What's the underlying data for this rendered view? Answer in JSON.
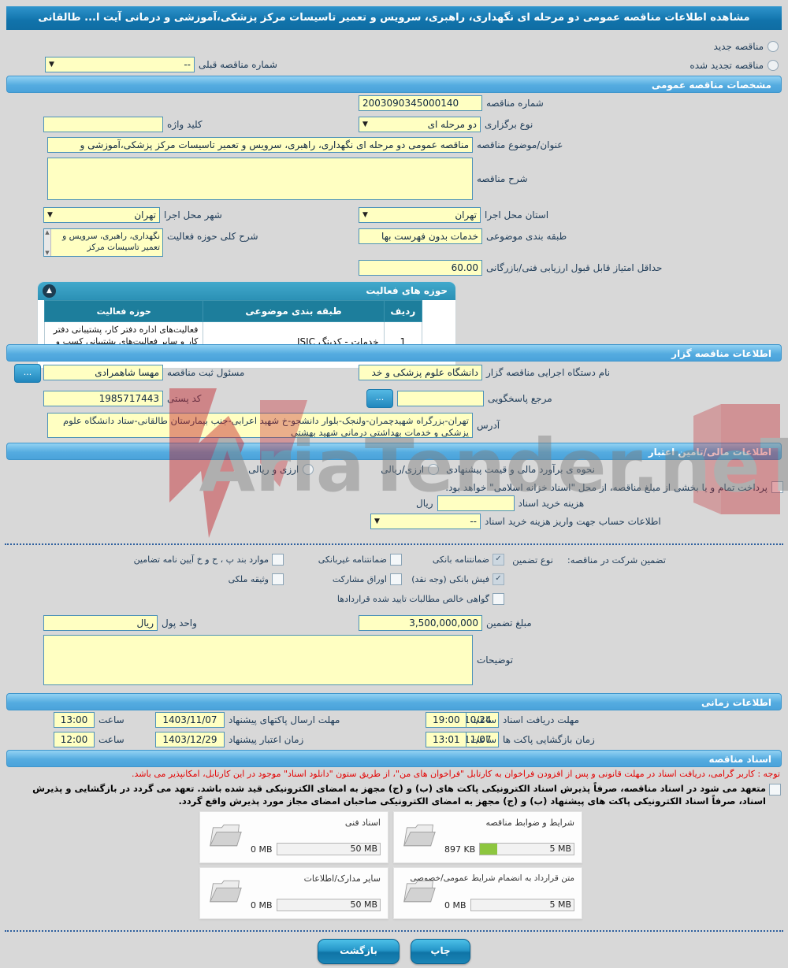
{
  "page": {
    "title": "مشاهده اطلاعات مناقصه عمومی دو مرحله ای نگهداری، راهبری، سرویس و تعمیر تاسیسات مرکز پزشکی،آموزشی و درمانی آیت ا... طالقانی"
  },
  "top": {
    "radio_new": "مناقصه جدید",
    "radio_renewed": "مناقصه تجدید شده",
    "prev_number_label": "شماره مناقصه قبلی",
    "prev_number_value": "--"
  },
  "sections": {
    "general": "مشخصات مناقصه عمومی",
    "activity": "حوزه های فعالیت",
    "agency": "اطلاعات مناقصه گزار",
    "financial": "اطلاعات مالی/تامین اعتبار",
    "timing": "اطلاعات زمانی",
    "documents": "اسناد مناقصه"
  },
  "general": {
    "number_label": "شماره مناقصه",
    "number_value": "2003090345000140",
    "type_label": "نوع برگزاری",
    "type_value": "دو مرحله ای",
    "keyword_label": "کلید واژه",
    "keyword_value": "",
    "subject_label": "عنوان/موضوع مناقصه",
    "subject_value": "مناقصه عمومی دو مرحله ای نگهداری، راهبری، سرویس و تعمیر تاسیسات مرکز پزشکی،آموزشی و",
    "desc_label": "شرح مناقصه",
    "province_label": "استان محل اجرا",
    "province_value": "تهران",
    "city_label": "شهر محل اجرا",
    "city_value": "تهران",
    "category_label": "طبقه بندی موضوعی",
    "category_value": "خدمات بدون فهرست بها",
    "activity_desc_label": "شرح کلی حوزه فعالیت",
    "activity_desc_value": "نگهداری، راهبری، سرویس و تعمیر تاسیسات مرکز",
    "min_score_label": "حداقل امتیاز قابل قبول ارزیابی فنی/بازرگانی",
    "min_score_value": "60.00"
  },
  "activity_table": {
    "headers": [
      "ردیف",
      "طبقه بندی موضوعی",
      "حوزه فعالیت"
    ],
    "rows": [
      {
        "row": "1",
        "category": "خدمات - کدینگ ISIC",
        "field": "فعالیت‌های  اداره دفتر کار، پشتیبانی دفتر کار و سایر فعالیت‌های پشتیبانی کسب و کار"
      }
    ]
  },
  "agency": {
    "org_label": "نام دستگاه اجرایی مناقصه گزار",
    "org_value": "دانشگاه علوم پزشکی و خد",
    "registrar_label": "مسئول ثبت مناقصه",
    "registrar_value": "مهسا شاهمرادی",
    "ref_label": "مرجع پاسخگویی",
    "ref_value": "",
    "postal_label": "کد پستی",
    "postal_value": "1985717443",
    "address_label": "آدرس",
    "address_value": "تهران-بزرگراه شهیدچمران-ولنجک-بلوار دانشجو-خ شهید اعرابی-جنب بیمارستان طالقانی-ستاد دانشگاه علوم پزشکی و خدمات بهداشتی درمانی شهید بهشتی",
    "more_button": "..."
  },
  "financial": {
    "estimate_label": "نحوه ی برآورد مالی و قیمت پیشنهادی",
    "estimate_option1": "ارزی/ریالی",
    "estimate_option2": "ارزی و ریالی",
    "treasury_note": "پرداخت تمام و یا بخشی از مبلغ مناقصه، از محل \"اسناد خزانه اسلامی\" خواهد بود.",
    "doc_fee_label": "هزینه خرید اسناد",
    "doc_fee_value": "",
    "doc_fee_unit": "ریال",
    "account_label": "اطلاعات حساب جهت واریز هزینه خرید اسناد",
    "account_value": "--"
  },
  "guarantee": {
    "lead_label": "تضمین شرکت در مناقصه:",
    "type_label": "نوع تضمین",
    "options": [
      {
        "label": "ضمانتنامه بانکی",
        "checked": true
      },
      {
        "label": "ضمانتنامه غیربانکی",
        "checked": false
      },
      {
        "label": "موارد بند پ ، ح و خ آیین نامه تضامین",
        "checked": false
      },
      {
        "label": "فیش بانکی (وجه نقد)",
        "checked": true
      },
      {
        "label": "اوراق مشارکت",
        "checked": false
      },
      {
        "label": "وثیقه ملکی",
        "checked": false
      },
      {
        "label": "گواهی خالص مطالبات تایید شده قراردادها",
        "checked": false
      }
    ],
    "amount_label": "مبلغ تضمین",
    "amount_value": "3,500,000,000",
    "currency_label": "واحد پول",
    "currency_value": "ریال",
    "notes_label": "توضیحات"
  },
  "timing": {
    "hour_label": "ساعت",
    "r1_right_label": "مهلت دریافت اسناد",
    "r1_right_date": "1403/10/24",
    "r1_right_time": "19:00",
    "r1_left_label": "مهلت ارسال پاکتهای پیشنهاد",
    "r1_left_date": "1403/11/07",
    "r1_left_time": "13:00",
    "r2_right_label": "زمان بازگشایی پاکت ها",
    "r2_right_date": "1403/11/07",
    "r2_right_time": "13:01",
    "r2_left_label": "زمان اعتبار پیشنهاد",
    "r2_left_date": "1403/12/29",
    "r2_left_time": "12:00"
  },
  "documents": {
    "notice": "توجه : کاربر گرامی، دریافت اسناد در مهلت قانونی و پس از افزودن فراخوان به کارتابل \"فراخوان های من\"، از طریق ستون \"دانلود اسناد\" موجود در این کارتابل، امکانپذیر می باشد.",
    "commitment": "متعهد می شود در اسناد مناقصه، صرفاً پذیرش اسناد الکترونیکی پاکت های (ب) و (ج) مجهز به امضای الکترونیکی قید شده باشد. تعهد می گردد در بازگشایی و پذیرش اسناد، صرفاً اسناد الکترونیکی پاکت های پیشنهاد (ب) و (ج) مجهز به امضای الکترونیکی صاحبان امضای مجاز مورد پذیرش واقع گردد.",
    "uploads": [
      {
        "label": "شرایط و ضوابط مناقصه",
        "size": "897 KB",
        "max": "5 MB",
        "fill": 18
      },
      {
        "label": "اسناد فنی",
        "size": "0 MB",
        "max": "50 MB",
        "fill": 0
      },
      {
        "label": "متن قرارداد به انضمام شرایط عمومی/خصوصی",
        "size": "0 MB",
        "max": "5 MB",
        "fill": 0
      },
      {
        "label": "سایر مدارک/اطلاعات",
        "size": "0 MB",
        "max": "50 MB",
        "fill": 0
      }
    ]
  },
  "buttons": {
    "back": "بازگشت",
    "print": "چاپ"
  },
  "watermark": {
    "text": "AriaTender.neT",
    "red": "#cc2229"
  }
}
